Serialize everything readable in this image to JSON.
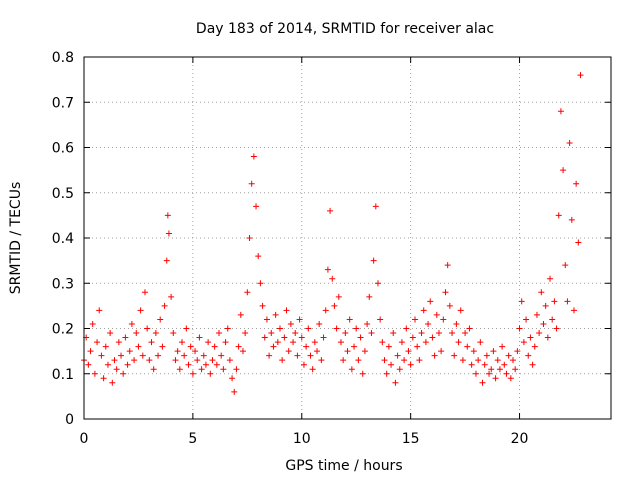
{
  "chart_data": {
    "type": "scatter",
    "title": "Day 183 of 2014, SRMTID for receiver alac",
    "xlabel": "GPS time / hours",
    "ylabel": "SRMTID / TECUs",
    "xlim": [
      0,
      24.2
    ],
    "ylim": [
      0,
      0.8
    ],
    "xticks": [
      "0",
      "5",
      "10",
      "15",
      "20"
    ],
    "xtick_values": [
      0,
      5,
      10,
      15,
      20
    ],
    "yticks": [
      "0",
      "0.1",
      "0.2",
      "0.3",
      "0.4",
      "0.5",
      "0.6",
      "0.7",
      "0.8"
    ],
    "ytick_values": [
      0,
      0.1,
      0.2,
      0.3,
      0.4,
      0.5,
      0.6,
      0.7,
      0.8
    ],
    "grid": true,
    "marker": "+",
    "series": [
      {
        "name": "SRMTID",
        "color": "#ff0000",
        "x": [
          0.0,
          0.1,
          0.2,
          0.3,
          0.4,
          0.5,
          0.6,
          0.7,
          0.8,
          0.9,
          1.0,
          1.1,
          1.2,
          1.3,
          1.4,
          1.5,
          1.6,
          1.7,
          1.8,
          1.9,
          2.0,
          2.1,
          2.2,
          2.3,
          2.4,
          2.5,
          2.6,
          2.7,
          2.8,
          2.9,
          3.0,
          3.1,
          3.2,
          3.3,
          3.4,
          3.5,
          3.6,
          3.7,
          3.8,
          3.85,
          3.9,
          4.0,
          4.1,
          4.2,
          4.3,
          4.4,
          4.5,
          4.6,
          4.7,
          4.8,
          4.9,
          5.0,
          5.1,
          5.2,
          5.3,
          5.4,
          5.5,
          5.6,
          5.7,
          5.8,
          5.9,
          6.0,
          6.1,
          6.2,
          6.3,
          6.4,
          6.5,
          6.6,
          6.7,
          6.8,
          6.9,
          7.0,
          7.1,
          7.2,
          7.3,
          7.4,
          7.5,
          7.6,
          7.7,
          7.8,
          7.9,
          8.0,
          8.1,
          8.2,
          8.3,
          8.4,
          8.5,
          8.6,
          8.7,
          8.8,
          8.9,
          9.0,
          9.1,
          9.2,
          9.3,
          9.4,
          9.5,
          9.6,
          9.7,
          9.8,
          9.9,
          10.0,
          10.1,
          10.2,
          10.3,
          10.4,
          10.5,
          10.6,
          10.7,
          10.8,
          10.9,
          11.0,
          11.1,
          11.2,
          11.3,
          11.4,
          11.5,
          11.6,
          11.7,
          11.8,
          11.9,
          12.0,
          12.1,
          12.2,
          12.3,
          12.4,
          12.5,
          12.6,
          12.7,
          12.8,
          12.9,
          13.0,
          13.1,
          13.2,
          13.3,
          13.4,
          13.5,
          13.6,
          13.7,
          13.8,
          13.9,
          14.0,
          14.1,
          14.2,
          14.3,
          14.4,
          14.5,
          14.6,
          14.7,
          14.8,
          14.9,
          15.0,
          15.1,
          15.2,
          15.3,
          15.4,
          15.5,
          15.6,
          15.7,
          15.8,
          15.9,
          16.0,
          16.1,
          16.2,
          16.3,
          16.4,
          16.5,
          16.6,
          16.7,
          16.8,
          16.9,
          17.0,
          17.1,
          17.2,
          17.3,
          17.4,
          17.5,
          17.6,
          17.7,
          17.8,
          17.9,
          18.0,
          18.1,
          18.2,
          18.3,
          18.4,
          18.5,
          18.6,
          18.7,
          18.8,
          18.9,
          19.0,
          19.1,
          19.2,
          19.3,
          19.4,
          19.5,
          19.6,
          19.7,
          19.8,
          19.9,
          20.0,
          20.1,
          20.2,
          20.3,
          20.4,
          20.5,
          20.6,
          20.7,
          20.8,
          20.9,
          21.0,
          21.1,
          21.2,
          21.3,
          21.4,
          21.5,
          21.6,
          21.7,
          21.8,
          21.9,
          22.0,
          22.1,
          22.2,
          22.3,
          22.4,
          22.5,
          22.6,
          22.7,
          22.8
        ],
        "y": [
          0.13,
          0.18,
          0.12,
          0.15,
          0.21,
          0.1,
          0.17,
          0.24,
          0.14,
          0.09,
          0.16,
          0.12,
          0.19,
          0.08,
          0.13,
          0.11,
          0.17,
          0.14,
          0.1,
          0.18,
          0.12,
          0.15,
          0.21,
          0.13,
          0.19,
          0.16,
          0.24,
          0.14,
          0.28,
          0.2,
          0.13,
          0.17,
          0.11,
          0.19,
          0.14,
          0.22,
          0.16,
          0.25,
          0.35,
          0.45,
          0.41,
          0.27,
          0.19,
          0.13,
          0.15,
          0.11,
          0.17,
          0.14,
          0.2,
          0.12,
          0.16,
          0.1,
          0.15,
          0.13,
          0.18,
          0.11,
          0.14,
          0.12,
          0.17,
          0.1,
          0.13,
          0.16,
          0.12,
          0.19,
          0.14,
          0.11,
          0.17,
          0.2,
          0.13,
          0.09,
          0.06,
          0.11,
          0.16,
          0.23,
          0.15,
          0.19,
          0.28,
          0.4,
          0.52,
          0.58,
          0.47,
          0.36,
          0.3,
          0.25,
          0.18,
          0.22,
          0.14,
          0.19,
          0.16,
          0.23,
          0.17,
          0.2,
          0.13,
          0.18,
          0.24,
          0.15,
          0.21,
          0.17,
          0.19,
          0.14,
          0.22,
          0.18,
          0.12,
          0.16,
          0.2,
          0.14,
          0.11,
          0.17,
          0.15,
          0.21,
          0.13,
          0.18,
          0.24,
          0.33,
          0.46,
          0.31,
          0.25,
          0.2,
          0.27,
          0.17,
          0.13,
          0.19,
          0.15,
          0.22,
          0.11,
          0.16,
          0.2,
          0.13,
          0.18,
          0.1,
          0.15,
          0.21,
          0.27,
          0.19,
          0.35,
          0.47,
          0.3,
          0.22,
          0.17,
          0.13,
          0.1,
          0.16,
          0.12,
          0.19,
          0.08,
          0.14,
          0.11,
          0.17,
          0.13,
          0.2,
          0.15,
          0.12,
          0.18,
          0.22,
          0.16,
          0.13,
          0.19,
          0.24,
          0.17,
          0.21,
          0.26,
          0.18,
          0.14,
          0.23,
          0.19,
          0.15,
          0.22,
          0.28,
          0.34,
          0.25,
          0.19,
          0.14,
          0.21,
          0.17,
          0.24,
          0.13,
          0.19,
          0.16,
          0.2,
          0.12,
          0.15,
          0.1,
          0.13,
          0.17,
          0.08,
          0.12,
          0.14,
          0.1,
          0.11,
          0.15,
          0.09,
          0.13,
          0.11,
          0.16,
          0.12,
          0.1,
          0.14,
          0.09,
          0.13,
          0.11,
          0.15,
          0.2,
          0.26,
          0.17,
          0.22,
          0.14,
          0.18,
          0.12,
          0.16,
          0.23,
          0.19,
          0.28,
          0.21,
          0.25,
          0.18,
          0.31,
          0.22,
          0.26,
          0.2,
          0.45,
          0.68,
          0.55,
          0.34,
          0.26,
          0.61,
          0.44,
          0.24,
          0.52,
          0.39,
          0.76
        ]
      }
    ]
  }
}
